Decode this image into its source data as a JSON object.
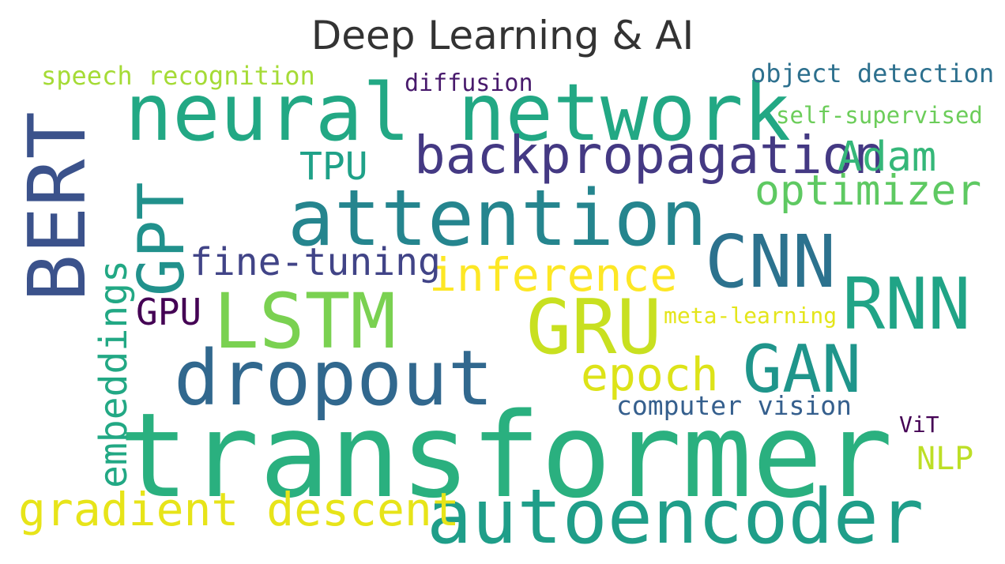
{
  "chart_data": {
    "type": "wordcloud",
    "title": "Deep Learning & AI",
    "words": [
      {
        "text": "transformer",
        "weight": 100,
        "color": "#2ab07f",
        "vertical": false
      },
      {
        "text": "neural network",
        "weight": 68,
        "color": "#22a884",
        "vertical": false
      },
      {
        "text": "attention",
        "weight": 67,
        "color": "#25858e",
        "vertical": false
      },
      {
        "text": "BERT",
        "weight": 69,
        "color": "#3b528b",
        "vertical": true
      },
      {
        "text": "GPT",
        "weight": 55,
        "color": "#21918c",
        "vertical": true
      },
      {
        "text": "LSTM",
        "weight": 66,
        "color": "#7ad151",
        "vertical": false
      },
      {
        "text": "GRU",
        "weight": 65,
        "color": "#c8e020",
        "vertical": false
      },
      {
        "text": "CNN",
        "weight": 63,
        "color": "#2c728e",
        "vertical": false
      },
      {
        "text": "RNN",
        "weight": 62,
        "color": "#20a486",
        "vertical": false
      },
      {
        "text": "GAN",
        "weight": 57,
        "color": "#1f958b",
        "vertical": false
      },
      {
        "text": "dropout",
        "weight": 66,
        "color": "#31688e",
        "vertical": false
      },
      {
        "text": "autoencoder",
        "weight": 65,
        "color": "#1f9e89",
        "vertical": false
      },
      {
        "text": "backpropagation",
        "weight": 45,
        "color": "#443983",
        "vertical": false
      },
      {
        "text": "inference",
        "weight": 40,
        "color": "#fde725",
        "vertical": false
      },
      {
        "text": "epoch",
        "weight": 40,
        "color": "#dde318",
        "vertical": false
      },
      {
        "text": "gradient descent",
        "weight": 40,
        "color": "#e7e419",
        "vertical": false
      },
      {
        "text": "optimizer",
        "weight": 36,
        "color": "#5ec962",
        "vertical": false
      },
      {
        "text": "Adam",
        "weight": 36,
        "color": "#35b779",
        "vertical": false
      },
      {
        "text": "fine-tuning",
        "weight": 33,
        "color": "#414487",
        "vertical": false
      },
      {
        "text": "embeddings",
        "weight": 33,
        "color": "#22a884",
        "vertical": true
      },
      {
        "text": "TPU",
        "weight": 33,
        "color": "#1fa188",
        "vertical": false
      },
      {
        "text": "GPU",
        "weight": 32,
        "color": "#440154",
        "vertical": false
      },
      {
        "text": "NLP",
        "weight": 28,
        "color": "#bddf26",
        "vertical": false
      },
      {
        "text": "computer vision",
        "weight": 23,
        "color": "#355f8d",
        "vertical": false
      },
      {
        "text": "speech recognition",
        "weight": 22,
        "color": "#a5db36",
        "vertical": false
      },
      {
        "text": "object detection",
        "weight": 22,
        "color": "#2d708e",
        "vertical": false
      },
      {
        "text": "diffusion",
        "weight": 21,
        "color": "#481a6c",
        "vertical": false
      },
      {
        "text": "self-supervised",
        "weight": 20,
        "color": "#6ccd5a",
        "vertical": false
      },
      {
        "text": "meta-learning",
        "weight": 20,
        "color": "#e4e51a",
        "vertical": false
      },
      {
        "text": "ViT",
        "weight": 20,
        "color": "#440154",
        "vertical": false
      }
    ]
  }
}
